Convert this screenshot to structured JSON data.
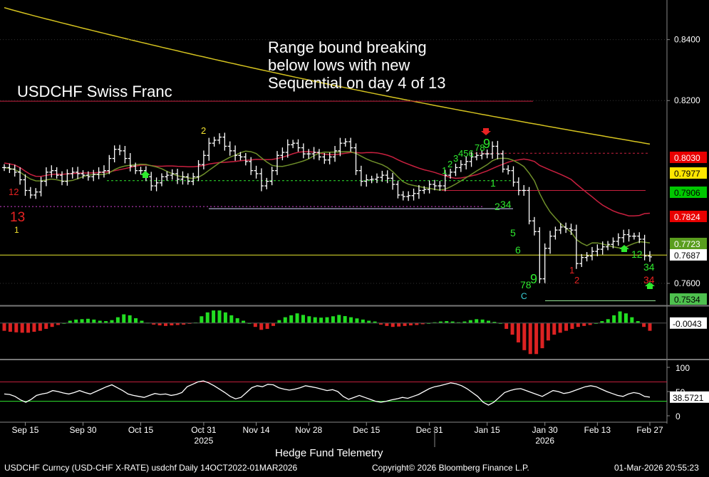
{
  "title": "USDCHF Swiss Franc",
  "annotation": [
    "Range bound breaking",
    "below lows with new",
    "Sequential on day 4 of 13"
  ],
  "brand": "Hedge Fund Telemetry",
  "footer": {
    "left": "USDCHF Curncy (USD-CHF X-RATE) usdchf Daily 14OCT2022-01MAR2026",
    "mid": "Copyright© 2026 Bloomberg Finance L.P.",
    "right": "01-Mar-2026 20:55:23"
  },
  "colors": {
    "background": "#000000",
    "candle": "#ffffff",
    "ma_long": "#d4c21f",
    "ma_mid": "#c8203f",
    "ma_short": "#6f8f2a",
    "seq_green": "#2ee82e",
    "seq_red": "#e82222",
    "seq_yellow": "#f2e22e",
    "macd_pos": "#22dd22",
    "macd_neg": "#dd2222",
    "osc_line": "#ffffff"
  },
  "chart_data": [
    {
      "type": "candlestick",
      "title": "USDCHF Swiss Franc",
      "x_ticks": [
        "Sep 15",
        "Sep 30",
        "Oct 15",
        "Oct 31",
        "Nov 14",
        "Nov 28",
        "Dec 15",
        "Dec 31",
        "Jan 15",
        "Jan 30",
        "Feb 13",
        "Feb 27"
      ],
      "year_labels": [
        "2025",
        "2026"
      ],
      "y_ticks": [
        "0.8400",
        "0.8200",
        "0.7600"
      ],
      "ylim": [
        0.753,
        0.853
      ],
      "dates": [
        "2025-09-09",
        "2025-09-10",
        "2025-09-11",
        "2025-09-12",
        "2025-09-15",
        "2025-09-16",
        "2025-09-17",
        "2025-09-18",
        "2025-09-19",
        "2025-09-22",
        "2025-09-23",
        "2025-09-24",
        "2025-09-25",
        "2025-09-26",
        "2025-09-29",
        "2025-09-30",
        "2025-10-01",
        "2025-10-02",
        "2025-10-03",
        "2025-10-06",
        "2025-10-07",
        "2025-10-08",
        "2025-10-09",
        "2025-10-10",
        "2025-10-13",
        "2025-10-14",
        "2025-10-15",
        "2025-10-16",
        "2025-10-17",
        "2025-10-20",
        "2025-10-21",
        "2025-10-22",
        "2025-10-23",
        "2025-10-24",
        "2025-10-27",
        "2025-10-28",
        "2025-10-29",
        "2025-10-30",
        "2025-10-31",
        "2025-11-03",
        "2025-11-04",
        "2025-11-05",
        "2025-11-06",
        "2025-11-07",
        "2025-11-10",
        "2025-11-11",
        "2025-11-12",
        "2025-11-13",
        "2025-11-14",
        "2025-11-17",
        "2025-11-18",
        "2025-11-19",
        "2025-11-20",
        "2025-11-21",
        "2025-11-24",
        "2025-11-25",
        "2025-11-26",
        "2025-11-27",
        "2025-11-28",
        "2025-12-01",
        "2025-12-02",
        "2025-12-03",
        "2025-12-04",
        "2025-12-05",
        "2025-12-08",
        "2025-12-09",
        "2025-12-10",
        "2025-12-11",
        "2025-12-12",
        "2025-12-15",
        "2025-12-16",
        "2025-12-17",
        "2025-12-18",
        "2025-12-19",
        "2025-12-22",
        "2025-12-23",
        "2025-12-24",
        "2025-12-25",
        "2025-12-26",
        "2025-12-29",
        "2025-12-30",
        "2025-12-31",
        "2026-01-01",
        "2026-01-02",
        "2026-01-05",
        "2026-01-06",
        "2026-01-07",
        "2026-01-08",
        "2026-01-09",
        "2026-01-12",
        "2026-01-13",
        "2026-01-14",
        "2026-01-15",
        "2026-01-16",
        "2026-01-19",
        "2026-01-20",
        "2026-01-21",
        "2026-01-22",
        "2026-01-23",
        "2026-01-26",
        "2026-01-27",
        "2026-01-28",
        "2026-01-29",
        "2026-01-30",
        "2026-02-02",
        "2026-02-03",
        "2026-02-04",
        "2026-02-05",
        "2026-02-06",
        "2026-02-09",
        "2026-02-10",
        "2026-02-11",
        "2026-02-12",
        "2026-02-13",
        "2026-02-16",
        "2026-02-17",
        "2026-02-18",
        "2026-02-19",
        "2026-02-20",
        "2026-02-23",
        "2026-02-24",
        "2026-02-25",
        "2026-02-26",
        "2026-02-27"
      ],
      "close": [
        0.798,
        0.7975,
        0.7965,
        0.794,
        0.7905,
        0.789,
        0.79,
        0.7935,
        0.7965,
        0.797,
        0.7955,
        0.7935,
        0.796,
        0.7965,
        0.796,
        0.7955,
        0.795,
        0.7958,
        0.7965,
        0.797,
        0.801,
        0.804,
        0.8035,
        0.801,
        0.7985,
        0.797,
        0.797,
        0.795,
        0.792,
        0.793,
        0.795,
        0.7955,
        0.796,
        0.7942,
        0.795,
        0.7935,
        0.795,
        0.799,
        0.802,
        0.806,
        0.807,
        0.808,
        0.805,
        0.8035,
        0.802,
        0.8015,
        0.8,
        0.797,
        0.796,
        0.792,
        0.7935,
        0.797,
        0.802,
        0.803,
        0.8055,
        0.806,
        0.8045,
        0.8025,
        0.8025,
        0.803,
        0.8015,
        0.8005,
        0.8015,
        0.8035,
        0.806,
        0.8065,
        0.8045,
        0.797,
        0.7935,
        0.794,
        0.7942,
        0.7948,
        0.7955,
        0.7945,
        0.7925,
        0.789,
        0.7885,
        0.7888,
        0.7895,
        0.7905,
        0.7908,
        0.7925,
        0.792,
        0.792,
        0.7955,
        0.7965,
        0.798,
        0.799,
        0.8,
        0.8015,
        0.802,
        0.8025,
        0.8025,
        0.805,
        0.8025,
        0.7975,
        0.797,
        0.7932,
        0.7905,
        0.7905,
        0.7805,
        0.777,
        0.7615,
        0.7715,
        0.7755,
        0.7775,
        0.7785,
        0.778,
        0.7775,
        0.7665,
        0.7685,
        0.769,
        0.7705,
        0.7712,
        0.772,
        0.7728,
        0.7738,
        0.775,
        0.776,
        0.7755,
        0.7755,
        0.7745,
        0.769,
        0.7687
      ],
      "range_lines": [
        {
          "label": "upper",
          "value": 0.8198
        },
        {
          "label": "resistance",
          "value": 0.8027
        },
        {
          "label": "range high",
          "value": 0.7937
        },
        {
          "label": "support",
          "value": 0.7845
        },
        {
          "label": "range low",
          "value": 0.7693
        },
        {
          "label": "Feb low",
          "value": 0.7543
        }
      ],
      "price_labels": [
        "0.8030",
        "0.7977",
        "0.7906",
        "0.7824",
        "0.7723",
        "0.7687",
        "0.7534"
      ],
      "sequential_counts": [
        {
          "text": "12",
          "color": "red"
        },
        {
          "text": "13",
          "color": "red"
        },
        {
          "text": "1",
          "color": "yellow"
        },
        {
          "text": "2",
          "color": "yellow"
        },
        {
          "text": "1",
          "color": "green"
        },
        {
          "text": "2",
          "color": "green"
        },
        {
          "text": "3",
          "color": "green"
        },
        {
          "text": "456",
          "color": "green"
        },
        {
          "text": "78",
          "color": "green"
        },
        {
          "text": "9",
          "color": "green"
        },
        {
          "text": "1",
          "color": "green"
        },
        {
          "text": "2",
          "color": "green"
        },
        {
          "text": "34",
          "color": "green"
        },
        {
          "text": "5",
          "color": "green"
        },
        {
          "text": "6",
          "color": "green"
        },
        {
          "text": "78",
          "color": "green"
        },
        {
          "text": "9",
          "color": "green"
        },
        {
          "text": "C",
          "color": "cyan"
        },
        {
          "text": "1",
          "color": "red"
        },
        {
          "text": "2",
          "color": "red"
        },
        {
          "text": "12",
          "color": "green"
        },
        {
          "text": "34",
          "color": "green"
        },
        {
          "text": "34",
          "color": "red"
        }
      ]
    },
    {
      "type": "bar",
      "label": "MACD histogram",
      "value_label": "-0.0043",
      "values": [
        -0.004,
        -0.0045,
        -0.0048,
        -0.005,
        -0.005,
        -0.0045,
        -0.004,
        -0.003,
        -0.002,
        -0.001,
        0.0,
        0.0012,
        0.0018,
        0.002,
        0.0022,
        0.0018,
        0.0012,
        0.001,
        0.0015,
        0.003,
        0.0045,
        0.004,
        0.0025,
        0.0012,
        0.0002,
        -0.0008,
        -0.0012,
        -0.0015,
        -0.0012,
        -0.001,
        -0.0008,
        -0.0004,
        0.0003,
        0.0035,
        0.0055,
        0.0065,
        0.0065,
        0.0055,
        0.004,
        0.0025,
        0.0012,
        0.0,
        -0.002,
        -0.0035,
        -0.003,
        -0.0015,
        0.0015,
        0.003,
        0.004,
        0.005,
        0.0042,
        0.0035,
        0.003,
        0.0028,
        0.003,
        0.0035,
        0.0042,
        0.0036,
        0.003,
        0.0024,
        0.0018,
        0.0012,
        0.0008,
        -0.0008,
        -0.0015,
        -0.002,
        -0.0018,
        -0.0015,
        -0.0012,
        -0.001,
        -0.0006,
        0.0,
        0.0004,
        0.0008,
        0.001,
        0.0008,
        0.0004,
        0.0008,
        0.0015,
        0.002,
        0.0018,
        0.0012,
        0.0006,
        0.0,
        -0.003,
        -0.006,
        -0.01,
        -0.014,
        -0.016,
        -0.016,
        -0.013,
        -0.009,
        -0.006,
        -0.005,
        -0.004,
        -0.003,
        -0.002,
        -0.0015,
        -0.001,
        0.0,
        0.001,
        0.002,
        0.004,
        0.006,
        0.005,
        0.003,
        0.001,
        -0.002,
        -0.004
      ],
      "ylim": [
        -0.017,
        0.008
      ]
    },
    {
      "type": "line",
      "label": "Oscillator",
      "value_label": "38.5721",
      "y_ticks": [
        "100",
        "50",
        "0"
      ],
      "ylim": [
        0,
        100
      ],
      "reference_lines": [
        70,
        30
      ],
      "values": [
        45,
        44,
        40,
        33,
        28,
        34,
        42,
        45,
        47,
        52,
        50,
        47,
        45,
        48,
        52,
        48,
        45,
        50,
        55,
        60,
        64,
        58,
        52,
        45,
        42,
        40,
        38,
        42,
        46,
        44,
        45,
        42,
        44,
        48,
        60,
        65,
        70,
        72,
        68,
        62,
        55,
        48,
        40,
        35,
        38,
        48,
        58,
        62,
        60,
        65,
        64,
        58,
        55,
        53,
        55,
        58,
        62,
        60,
        58,
        55,
        52,
        54,
        50,
        40,
        34,
        38,
        42,
        38,
        34,
        30,
        28,
        30,
        33,
        35,
        38,
        36,
        40,
        44,
        50,
        56,
        60,
        62,
        65,
        68,
        66,
        62,
        56,
        48,
        40,
        28,
        22,
        28,
        38,
        48,
        52,
        55,
        56,
        52,
        48,
        44,
        40,
        46,
        52,
        50,
        46,
        48,
        52,
        56,
        60,
        62,
        60,
        55,
        50,
        46,
        42,
        40,
        45,
        48,
        46,
        40,
        38.5721
      ]
    }
  ]
}
